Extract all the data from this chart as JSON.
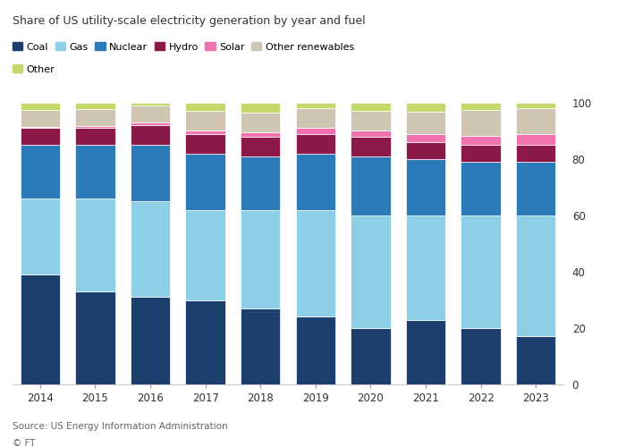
{
  "years": [
    2014,
    2015,
    2016,
    2017,
    2018,
    2019,
    2020,
    2021,
    2022,
    2023
  ],
  "series": {
    "Coal": [
      39,
      33,
      31,
      30,
      27,
      24,
      20,
      23,
      20,
      17
    ],
    "Gas": [
      27,
      33,
      34,
      32,
      35,
      38,
      40,
      37,
      40,
      43
    ],
    "Nuclear": [
      19,
      19,
      20,
      20,
      19,
      20,
      21,
      20,
      19,
      19
    ],
    "Hydro": [
      6,
      6,
      7,
      7,
      7,
      7,
      7,
      6,
      6,
      6
    ],
    "Solar": [
      0.5,
      0.7,
      1.0,
      1.3,
      1.6,
      2.0,
      2.3,
      2.8,
      3.4,
      4.0
    ],
    "Other renewables": [
      6,
      6,
      6,
      7,
      7,
      7,
      7,
      8,
      9,
      9
    ],
    "Other": [
      2.5,
      2.3,
      1.0,
      2.7,
      3.4,
      2.0,
      2.7,
      3.2,
      2.6,
      2.0
    ]
  },
  "colors": {
    "Coal": "#1c3f6e",
    "Gas": "#8ecfe8",
    "Nuclear": "#2b7bb9",
    "Hydro": "#8b1a4a",
    "Solar": "#f272b0",
    "Other renewables": "#cfc5b2",
    "Other": "#c5d96b"
  },
  "series_order": [
    "Coal",
    "Gas",
    "Nuclear",
    "Hydro",
    "Solar",
    "Other renewables",
    "Other"
  ],
  "title": "Share of US utility-scale electricity generation by year and fuel",
  "source": "Source: US Energy Information Administration",
  "footer": "© FT",
  "ylim": [
    0,
    100
  ],
  "yticks": [
    0,
    20,
    40,
    60,
    80,
    100
  ],
  "background_color": "#ffffff",
  "legend_row1": [
    "Coal",
    "Gas",
    "Nuclear",
    "Hydro",
    "Solar",
    "Other renewables"
  ],
  "legend_row2": [
    "Other"
  ]
}
